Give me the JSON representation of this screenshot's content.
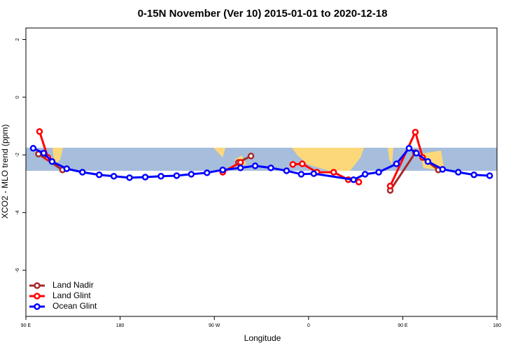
{
  "chart_data": {
    "type": "line",
    "title": "0-15N November (Ver 10)   2015-01-01 to 2020-12-18",
    "x_label": "Longitude",
    "y_label": "XCO2 - MLO trend (ppm)",
    "xlim": [
      90,
      540
    ],
    "ylim": [
      -7.6,
      2.4
    ],
    "xticks": [
      {
        "value": 90,
        "label": "90 E"
      },
      180,
      {
        "value": 270,
        "label": "90 W"
      },
      {
        "value": 360,
        "label": "0"
      },
      {
        "value": 450,
        "label": "90 E"
      },
      {
        "value": 540,
        "label": "180"
      }
    ],
    "yticks": [
      2,
      0,
      -2,
      -4,
      -6
    ],
    "legend": "bottom-left",
    "series": [
      {
        "name": "Land Nadir",
        "color": "#a52a2a",
        "x": [
          102,
          125,
          null,
          293,
          305,
          null,
          438,
          462,
          484
        ],
        "values": [
          -1.97,
          -2.52,
          null,
          -2.26,
          -2.04,
          null,
          -3.23,
          -1.92,
          -2.52
        ]
      },
      {
        "name": "Land Glint",
        "color": "#ff0000",
        "x": [
          103,
          111,
          null,
          278,
          295,
          null,
          345,
          354,
          368,
          384,
          398,
          408,
          null,
          438,
          462,
          469
        ],
        "values": [
          -1.19,
          -2.09,
          null,
          -2.6,
          -2.26,
          null,
          -2.33,
          -2.31,
          -2.6,
          -2.6,
          -2.86,
          -2.94,
          null,
          -3.08,
          -1.21,
          -2.09
        ]
      },
      {
        "name": "Ocean Glint",
        "color": "#0000ff",
        "x": [
          97,
          107,
          115,
          129,
          144,
          160,
          174,
          189,
          204,
          219,
          234,
          248,
          263,
          278,
          295,
          309,
          324,
          339,
          353,
          365,
          403,
          414,
          427,
          444,
          456,
          463,
          474,
          488,
          503,
          518,
          533
        ],
        "values": [
          -1.77,
          -1.94,
          -2.23,
          -2.48,
          -2.6,
          -2.69,
          -2.74,
          -2.79,
          -2.77,
          -2.74,
          -2.72,
          -2.67,
          -2.62,
          -2.52,
          -2.45,
          -2.38,
          -2.45,
          -2.55,
          -2.67,
          -2.65,
          -2.86,
          -2.67,
          -2.6,
          -2.31,
          -1.77,
          -1.94,
          -2.23,
          -2.5,
          -2.6,
          -2.69,
          -2.72
        ]
      }
    ]
  }
}
